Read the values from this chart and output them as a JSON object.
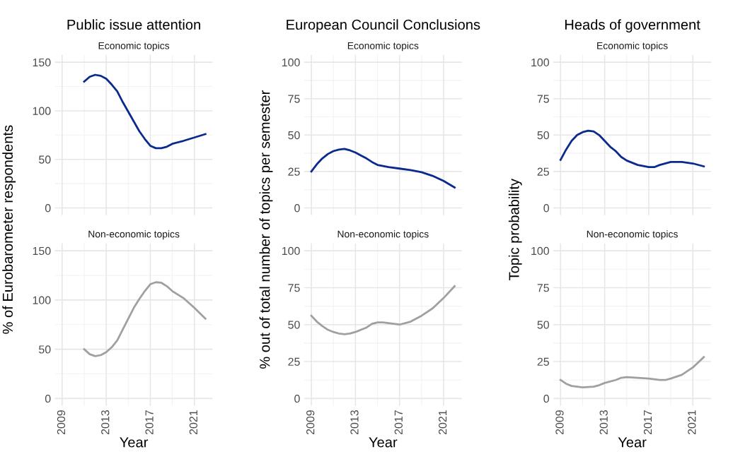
{
  "chart_data": [
    {
      "type": "line",
      "title": "Public issue attention",
      "subtitle": "Economic topics",
      "ylabel": "% of Eurobarometer respondents",
      "xlim": [
        2008.35,
        2022.65
      ],
      "xticks": [
        2009,
        2013,
        2017,
        2021
      ],
      "ylim": [
        -7.5,
        157.5
      ],
      "yticks": [
        0,
        50,
        100,
        150
      ],
      "grid": true,
      "tick_labels": "y",
      "series": [
        {
          "color": "#0a2a8c",
          "x": [
            2011,
            2011.5,
            2012,
            2012.5,
            2013,
            2013.5,
            2014,
            2014.5,
            2015,
            2015.5,
            2016,
            2016.5,
            2017,
            2017.5,
            2018,
            2018.5,
            2019,
            2020,
            2021,
            2022
          ],
          "values": [
            130,
            135,
            137,
            136,
            133,
            127,
            120,
            109,
            99,
            89,
            79,
            71,
            64,
            61.5,
            61.5,
            63,
            66,
            69,
            72.5,
            76
          ]
        }
      ]
    },
    {
      "type": "line",
      "title": "European Council Conclusions",
      "subtitle": "Economic topics",
      "ylabel": "% out of total number of topics per semester",
      "xlim": [
        2008.35,
        2022.65
      ],
      "xticks": [
        2009,
        2013,
        2017,
        2021
      ],
      "ylim": [
        -5,
        105
      ],
      "yticks": [
        0,
        25,
        50,
        75,
        100
      ],
      "grid": true,
      "tick_labels": "y",
      "series": [
        {
          "color": "#0a2a8c",
          "x": [
            2009,
            2009.5,
            2010,
            2010.5,
            2011,
            2011.5,
            2012,
            2012.5,
            2013,
            2013.5,
            2014,
            2014.5,
            2015,
            2016,
            2017,
            2018,
            2019,
            2020,
            2021,
            2022
          ],
          "values": [
            25,
            30,
            34,
            37,
            39,
            40,
            40.5,
            39.5,
            38,
            36,
            34,
            31.5,
            29.5,
            28,
            27,
            26,
            24.5,
            22,
            18.5,
            14
          ]
        }
      ]
    },
    {
      "type": "line",
      "title": "Heads of government",
      "subtitle": "Economic topics",
      "ylabel": "Topic probability",
      "xlim": [
        2008.35,
        2022.65
      ],
      "xticks": [
        2009,
        2013,
        2017,
        2021
      ],
      "ylim": [
        -5,
        105
      ],
      "yticks": [
        0,
        25,
        50,
        75,
        100
      ],
      "grid": true,
      "tick_labels": "y",
      "series": [
        {
          "color": "#0a2a8c",
          "x": [
            2009,
            2009.5,
            2010,
            2010.5,
            2011,
            2011.5,
            2012,
            2012.5,
            2013,
            2013.5,
            2014,
            2014.5,
            2015,
            2016,
            2017,
            2017.5,
            2018,
            2019,
            2020,
            2021,
            2022
          ],
          "values": [
            33,
            40,
            46,
            50,
            52,
            53,
            52.5,
            50,
            46,
            42,
            39,
            35,
            32.5,
            29.5,
            28,
            28,
            29.5,
            31.5,
            31.5,
            30.5,
            28.5
          ]
        }
      ]
    },
    {
      "type": "line",
      "subtitle": "Non-economic topics",
      "xlabel": "Year",
      "xlim": [
        2008.35,
        2022.65
      ],
      "xticks": [
        2009,
        2013,
        2017,
        2021
      ],
      "ylim": [
        -7.5,
        157.5
      ],
      "yticks": [
        0,
        50,
        100,
        150
      ],
      "grid": true,
      "series": [
        {
          "color": "#a0a0a0",
          "x": [
            2011,
            2011.5,
            2012,
            2012.5,
            2013,
            2013.5,
            2014,
            2014.5,
            2015,
            2015.5,
            2016,
            2016.5,
            2017,
            2017.5,
            2018,
            2018.5,
            2019,
            2020,
            2021,
            2022
          ],
          "values": [
            50,
            45,
            43,
            44,
            47,
            52,
            59,
            70,
            81,
            92,
            101,
            109,
            116,
            118,
            117.5,
            114,
            109,
            102,
            92,
            81
          ]
        }
      ]
    },
    {
      "type": "line",
      "subtitle": "Non-economic topics",
      "xlabel": "Year",
      "xlim": [
        2008.35,
        2022.65
      ],
      "xticks": [
        2009,
        2013,
        2017,
        2021
      ],
      "ylim": [
        -5,
        105
      ],
      "yticks": [
        0,
        25,
        50,
        75,
        100
      ],
      "grid": true,
      "series": [
        {
          "color": "#a0a0a0",
          "x": [
            2009,
            2009.5,
            2010,
            2010.5,
            2011,
            2011.5,
            2012,
            2012.5,
            2013,
            2013.5,
            2014,
            2014.5,
            2015,
            2015.5,
            2016,
            2017,
            2018,
            2019,
            2020,
            2021,
            2022
          ],
          "values": [
            56,
            52,
            49,
            46.5,
            45,
            44,
            43.5,
            44,
            45,
            46.5,
            48,
            50.5,
            51.5,
            51.5,
            51,
            50,
            52,
            56,
            61,
            68,
            76
          ]
        }
      ]
    },
    {
      "type": "line",
      "subtitle": "Non-economic topics",
      "xlabel": "Year",
      "xlim": [
        2008.35,
        2022.65
      ],
      "xticks": [
        2009,
        2013,
        2017,
        2021
      ],
      "ylim": [
        -5,
        105
      ],
      "yticks": [
        0,
        25,
        50,
        75,
        100
      ],
      "grid": true,
      "series": [
        {
          "color": "#a0a0a0",
          "x": [
            2009,
            2009.5,
            2010,
            2011,
            2012,
            2012.5,
            2013,
            2014,
            2014.5,
            2015,
            2016,
            2017,
            2018,
            2018.5,
            2019,
            2020,
            2021,
            2022
          ],
          "values": [
            12.5,
            10,
            8.5,
            7.5,
            8,
            9,
            10.5,
            12.5,
            14,
            14.5,
            14,
            13.5,
            12.5,
            12.5,
            13.5,
            16,
            21,
            28
          ]
        }
      ]
    }
  ]
}
